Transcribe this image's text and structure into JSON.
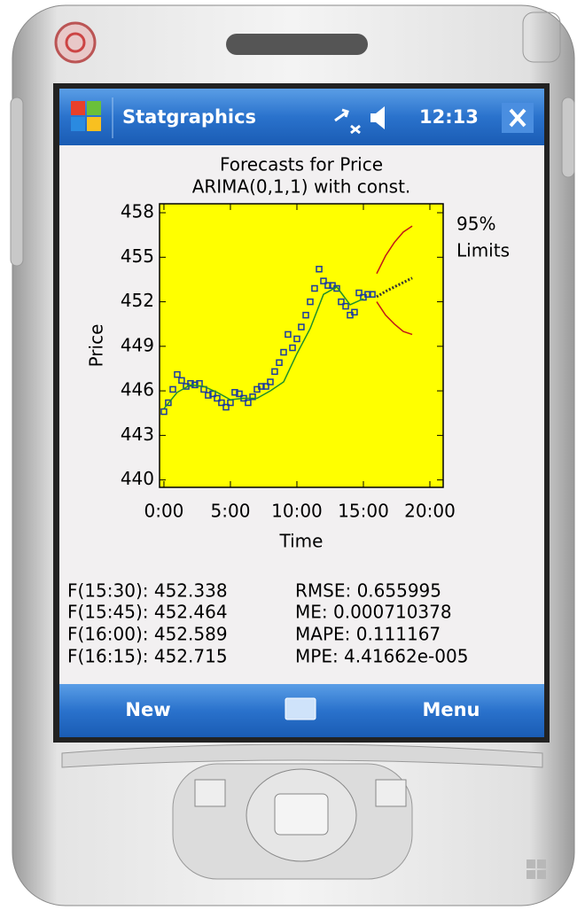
{
  "status_bar": {
    "app_title": "Statgraphics",
    "time": "12:13"
  },
  "chart_data": {
    "type": "line",
    "title": "Forecasts for Price",
    "subtitle": "ARIMA(0,1,1) with const.",
    "x_label": "Time",
    "y_label": "Price",
    "annotation": [
      "95%",
      "Limits"
    ],
    "background": "#ffff00",
    "xlim": [
      -0.33,
      21
    ],
    "ylim": [
      439.5,
      458.6
    ],
    "xticks": [
      {
        "value": 0,
        "label": "0:00"
      },
      {
        "value": 5,
        "label": "5:00"
      },
      {
        "value": 10,
        "label": "10:00"
      },
      {
        "value": 15,
        "label": "15:00"
      },
      {
        "value": 20,
        "label": "20:00"
      }
    ],
    "yticks": [
      440,
      443,
      446,
      449,
      452,
      455,
      458
    ],
    "series": [
      {
        "color": "#1f8f2a",
        "marker": "square",
        "marker_color": "#1a3aa0",
        "line": false,
        "x": [
          0,
          0.33,
          0.67,
          1,
          1.33,
          1.67,
          2,
          2.33,
          2.67,
          3,
          3.33,
          3.67,
          4,
          4.33,
          4.67,
          5,
          5.33,
          5.67,
          6,
          6.33,
          6.67,
          7,
          7.33,
          7.67,
          8,
          8.33,
          8.67,
          9,
          9.33,
          9.67,
          10,
          10.33,
          10.67,
          11,
          11.33,
          11.67,
          12,
          12.33,
          12.67,
          13,
          13.33,
          13.67,
          14,
          14.33,
          14.67,
          15,
          15.33,
          15.67
        ],
        "values": [
          444.6,
          445.2,
          446.1,
          447.1,
          446.7,
          446.3,
          446.5,
          446.4,
          446.5,
          446.1,
          445.7,
          445.8,
          445.5,
          445.2,
          444.9,
          445.2,
          445.9,
          445.8,
          445.5,
          445.2,
          445.6,
          446.1,
          446.3,
          446.3,
          446.6,
          447.3,
          447.9,
          448.6,
          449.8,
          448.9,
          449.5,
          450.3,
          451.1,
          452.0,
          452.9,
          454.2,
          453.4,
          453.1,
          453.1,
          452.9,
          452.0,
          451.7,
          451.1,
          451.3,
          452.6,
          452.3,
          452.5,
          452.5
        ]
      },
      {
        "color": "#1f8f2a",
        "line": true,
        "x": [
          0,
          1,
          2,
          3,
          4,
          5,
          6,
          7,
          8,
          9,
          10,
          11,
          12,
          13,
          14,
          15
        ],
        "values": [
          444.8,
          445.9,
          446.4,
          446.3,
          445.9,
          445.4,
          445.5,
          445.5,
          446.0,
          446.6,
          448.5,
          450.2,
          452.5,
          453.0,
          451.8,
          452.2
        ]
      },
      {
        "color": "#333333",
        "line": true,
        "dashed": true,
        "x": [
          16,
          16.67,
          17.33,
          18,
          18.67
        ],
        "values": [
          452.34,
          452.7,
          453.0,
          453.3,
          453.6
        ]
      },
      {
        "color": "#c01818",
        "line": true,
        "x": [
          16,
          16.67,
          17.33,
          18,
          18.67
        ],
        "values": [
          452.0,
          451.1,
          450.5,
          450.0,
          449.8
        ]
      },
      {
        "color": "#c01818",
        "line": true,
        "x": [
          16,
          16.67,
          17.33,
          18,
          18.67
        ],
        "values": [
          453.9,
          455.1,
          456.0,
          456.7,
          457.1
        ]
      }
    ]
  },
  "results": {
    "forecasts": [
      "F(15:30): 452.338",
      "F(15:45): 452.464",
      "F(16:00): 452.589",
      "F(16:15): 452.715"
    ],
    "statistics": [
      "RMSE: 0.655995",
      "ME: 0.000710378",
      "MAPE: 0.111167",
      "MPE: 4.41662e-005"
    ]
  },
  "menu": {
    "left": "New",
    "right": "Menu"
  }
}
